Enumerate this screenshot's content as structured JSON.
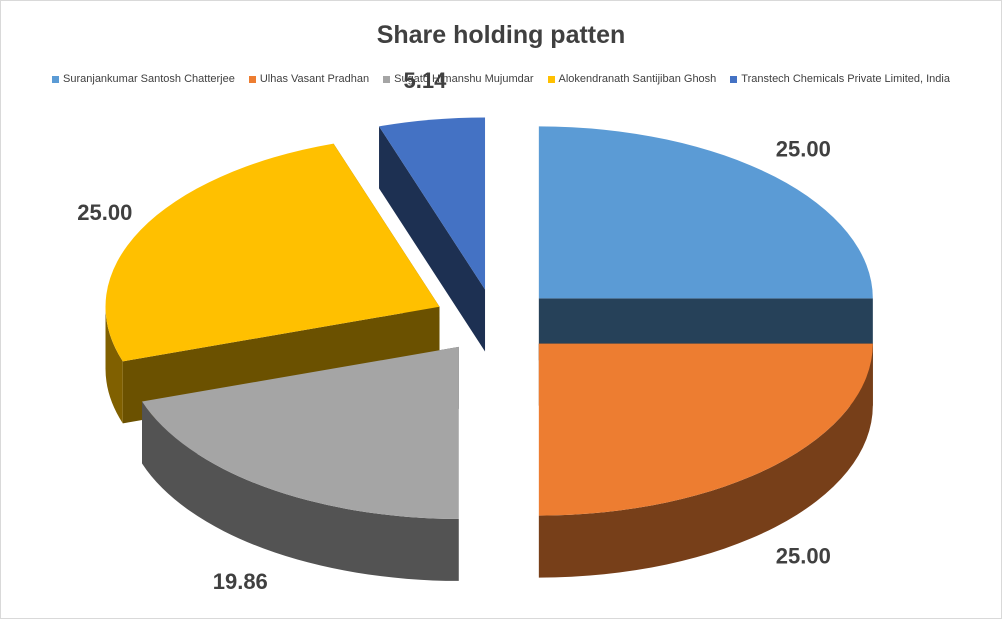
{
  "chart_data": {
    "type": "pie",
    "title": "Share holding patten",
    "legend_position": "top",
    "labels": [
      "Suranjankumar Santosh Chatterjee",
      "Ulhas Vasant Pradhan",
      "Sugato Himanshu Mujumdar",
      "Alokendranath Santijiban Ghosh",
      "Transtech Chemicals Private Limited, India"
    ],
    "values": [
      25.0,
      25.0,
      19.86,
      25.0,
      5.14
    ],
    "value_labels": [
      "25.00",
      "25.00",
      "19.86",
      "25.00",
      "5.14"
    ],
    "colors": [
      "#5b9bd5",
      "#ed7d31",
      "#a5a5a5",
      "#ffc000",
      "#4472c4"
    ],
    "exploded": true,
    "style": "3d"
  }
}
